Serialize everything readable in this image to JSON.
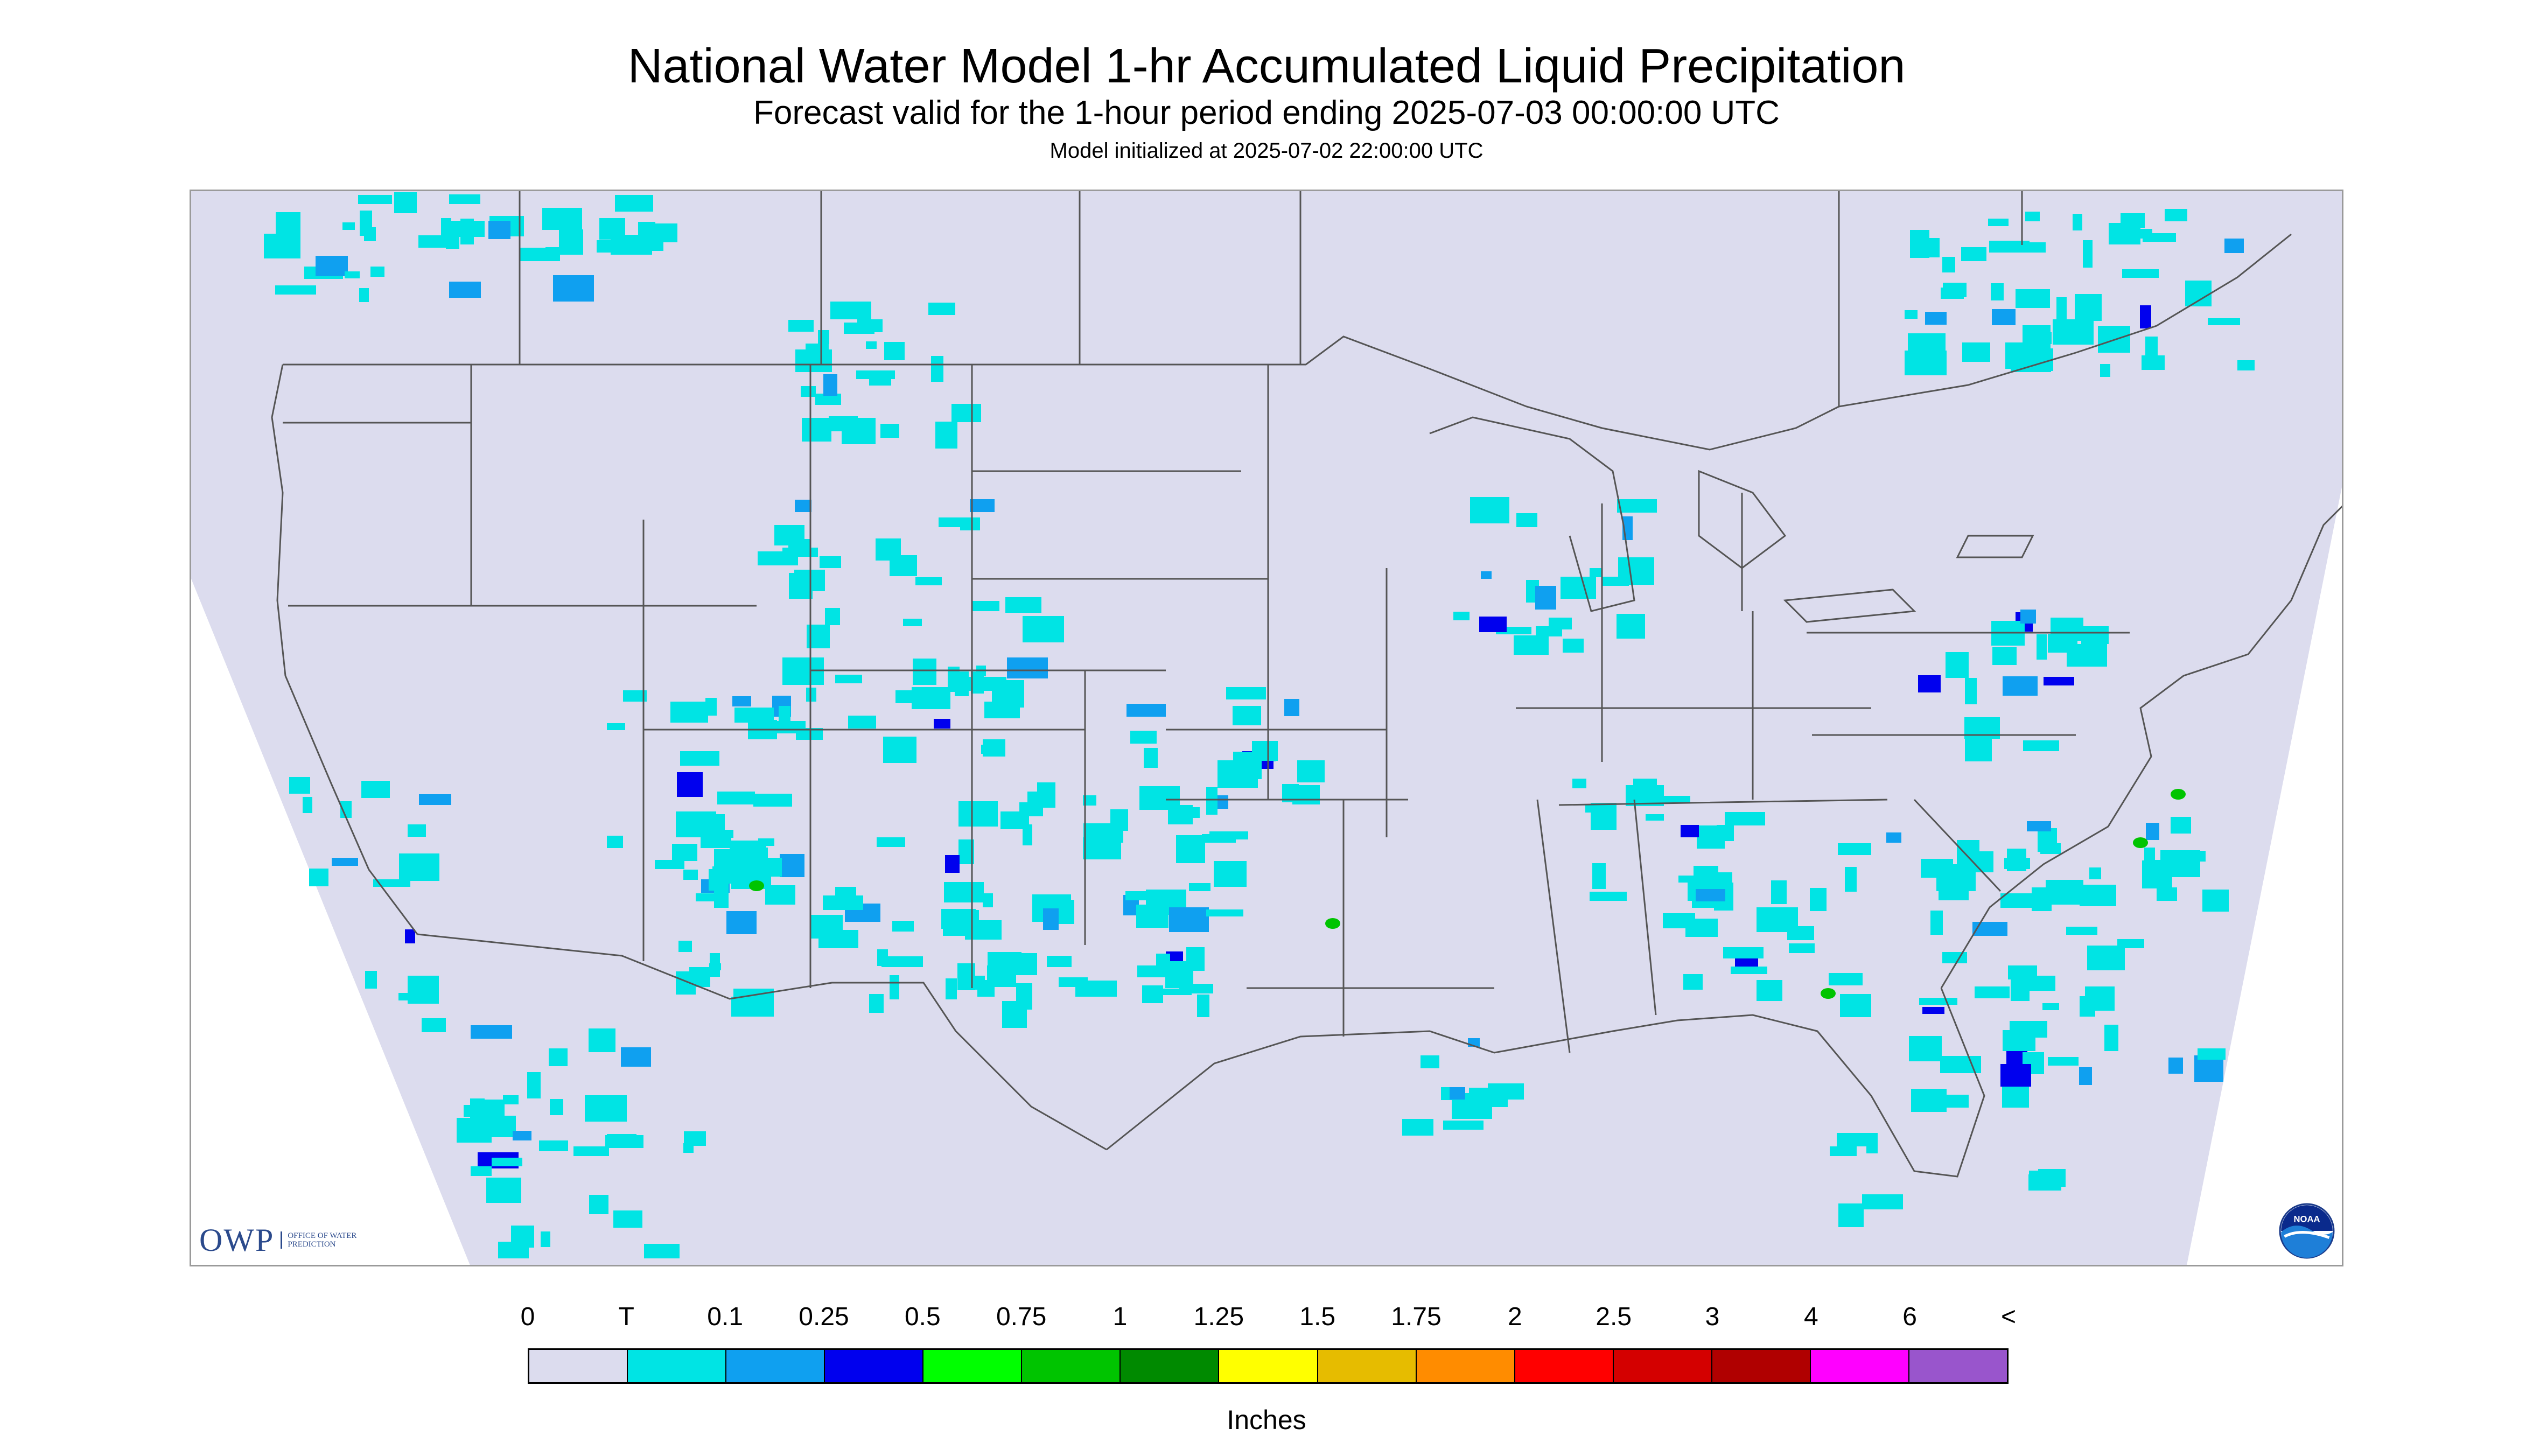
{
  "header": {
    "title": "National Water Model 1-hr Accumulated Liquid Precipitation",
    "subtitle": "Forecast valid for the 1-hour period ending 2025-07-03 00:00:00 UTC",
    "init_note": "Model initialized at 2025-07-02 22:00:00 UTC"
  },
  "logos": {
    "owp_text": "OWP",
    "owp_subtext": "OFFICE OF WATER PREDICTION",
    "noaa_text": "NOAA"
  },
  "legend": {
    "labels": [
      "0",
      "T",
      "0.1",
      "0.25",
      "0.5",
      "0.75",
      "1",
      "1.25",
      "1.5",
      "1.75",
      "2",
      "2.5",
      "3",
      "4",
      "6",
      "<"
    ],
    "colors": [
      "#dcdcee",
      "#00e4e4",
      "#0fa0f0",
      "#0000ee",
      "#00ff00",
      "#00c400",
      "#008a00",
      "#ffff00",
      "#e6bc00",
      "#ff8c00",
      "#ff0000",
      "#d40000",
      "#b00000",
      "#ff00ff",
      "#9955cc"
    ],
    "units_label": "Inches"
  },
  "map": {
    "background_color": "#dcdcee",
    "outside_domain_color": "#ffffff",
    "precip_light_color": "#00e4e4",
    "precip_medium_color": "#0fa0f0",
    "precip_heavy_color": "#0000ee",
    "precip_peak_color": "#00c400",
    "boundary_color": "#555555"
  }
}
